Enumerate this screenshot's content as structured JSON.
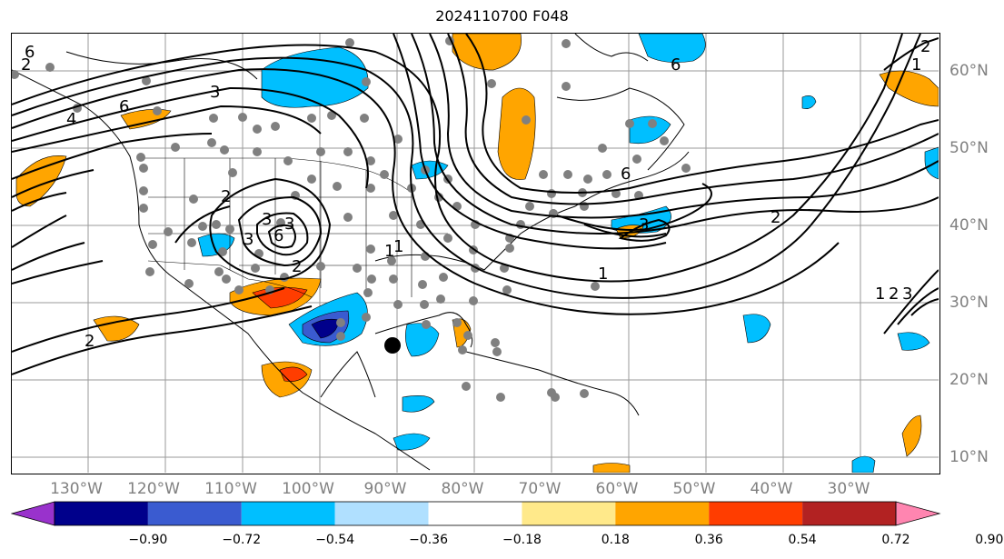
{
  "title": "2024110700 F048",
  "lon_labels": [
    "130°W",
    "120°W",
    "110°W",
    "100°W",
    "90°W",
    "80°W",
    "70°W",
    "60°W",
    "50°W",
    "40°W",
    "30°W"
  ],
  "lat_labels": [
    "60°N",
    "50°N",
    "40°N",
    "30°N",
    "20°N",
    "10°N"
  ],
  "colorbar": {
    "ticks": [
      "−0.90",
      "−0.72",
      "−0.54",
      "−0.36",
      "−0.18",
      "0.18",
      "0.36",
      "0.54",
      "0.72",
      "0.90"
    ],
    "colors": [
      "#9932cc",
      "#00008b",
      "#3a5bd0",
      "#00bfff",
      "#b0e0ff",
      "#ffffff",
      "#ffe98a",
      "#ffa500",
      "#ff3d00",
      "#b22222",
      "#ff85b0"
    ]
  },
  "contour_labels": [
    "6",
    "6",
    "6",
    "3",
    "2",
    "2",
    "1",
    "1",
    "1",
    "2",
    "3",
    "6",
    "2",
    "3",
    "3",
    "2",
    "1",
    "2",
    "3",
    "4",
    "6",
    "1",
    "2",
    "3"
  ]
}
